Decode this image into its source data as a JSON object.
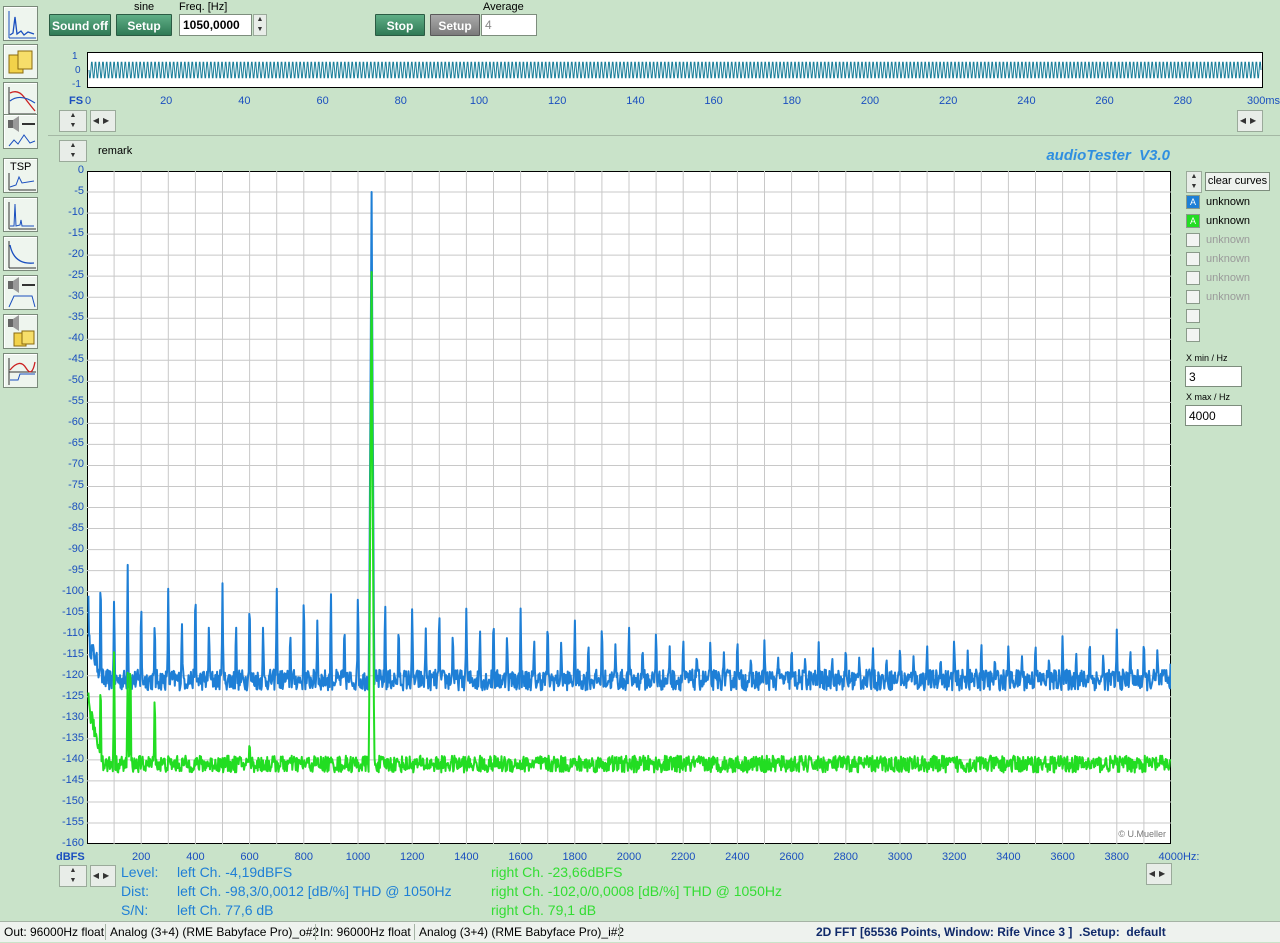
{
  "left_toolbar": [
    {
      "icon": "fft-spectrum-icon"
    },
    {
      "icon": "speaker-folder-icon"
    },
    {
      "icon": "frequency-response-icon"
    },
    {
      "icon": "speaker-measure-icon"
    },
    {
      "icon": "tsp-icon",
      "label": "TSP"
    },
    {
      "icon": "impulse-response-icon"
    },
    {
      "icon": "decay-curve-icon"
    },
    {
      "icon": "speaker-filter-icon"
    },
    {
      "icon": "speaker-folder-icon"
    },
    {
      "icon": "bode-plot-icon"
    }
  ],
  "generator": {
    "signal_type": "sine",
    "sound_button": "Sound off",
    "setup_button": "Setup",
    "freq_label": "Freq. [Hz]",
    "freq_value": "1050,0000"
  },
  "analyzer": {
    "stop_button": "Stop",
    "setup_button": "Setup",
    "average_label": "Average",
    "average_value": "4"
  },
  "scope": {
    "y_ticks": [
      "1",
      "0",
      "-1"
    ],
    "x_unit_left": "FS",
    "x_ticks": [
      "0",
      "20",
      "40",
      "60",
      "80",
      "100",
      "120",
      "140",
      "160",
      "180",
      "200",
      "220",
      "240",
      "260",
      "280",
      "300ms"
    ],
    "trace_color": "#1a7f9a"
  },
  "remark_label": "remark",
  "brand": "audioTester  V3.0",
  "copyright": "© U.Mueller",
  "clear_curves_button": "clear curves",
  "legend": [
    {
      "letter": "A",
      "label": "unknown",
      "color": "#1e7fd6",
      "active": true
    },
    {
      "letter": "A",
      "label": "unknown",
      "color": "#22dd22",
      "active": true
    },
    {
      "letter": "",
      "label": "unknown",
      "active": false
    },
    {
      "letter": "",
      "label": "unknown",
      "active": false
    },
    {
      "letter": "",
      "label": "unknown",
      "active": false
    },
    {
      "letter": "",
      "label": "unknown",
      "active": false
    },
    {
      "letter": "",
      "label": "",
      "active": false
    },
    {
      "letter": "",
      "label": "",
      "active": false
    }
  ],
  "xmin_label": "X min / Hz",
  "xmin_value": "3",
  "xmax_label": "X max / Hz",
  "xmax_value": "4000",
  "chart_data": {
    "type": "line",
    "ylabel": "dBFS",
    "xlabel": "Hz",
    "x_unit_suffix": "Hz:",
    "xlim": [
      0,
      4000
    ],
    "ylim": [
      -160,
      0
    ],
    "y_ticks": [
      "0",
      "-5",
      "-10",
      "-15",
      "-20",
      "-25",
      "-30",
      "-35",
      "-40",
      "-45",
      "-50",
      "-55",
      "-60",
      "-65",
      "-70",
      "-75",
      "-80",
      "-85",
      "-90",
      "-95",
      "-100",
      "-105",
      "-110",
      "-115",
      "-120",
      "-125",
      "-130",
      "-135",
      "-140",
      "-145",
      "-150",
      "-155",
      "-160"
    ],
    "x_ticks": [
      "200",
      "400",
      "600",
      "800",
      "1000",
      "1200",
      "1400",
      "1600",
      "1800",
      "2000",
      "2200",
      "2400",
      "2600",
      "2800",
      "3000",
      "3200",
      "3400",
      "3600",
      "3800",
      "4000"
    ],
    "grid": true,
    "series": [
      {
        "color": "#1e7fd6",
        "floor": -121,
        "peaks": [
          [
            5,
            -101
          ],
          [
            50,
            -92
          ],
          [
            100,
            -100
          ],
          [
            150,
            -92
          ],
          [
            200,
            -100
          ],
          [
            250,
            -105
          ],
          [
            300,
            -98
          ],
          [
            350,
            -106
          ],
          [
            400,
            -96
          ],
          [
            450,
            -106
          ],
          [
            500,
            -98
          ],
          [
            550,
            -106
          ],
          [
            600,
            -99
          ],
          [
            650,
            -107
          ],
          [
            700,
            -98
          ],
          [
            750,
            -108
          ],
          [
            800,
            -98
          ],
          [
            850,
            -106
          ],
          [
            900,
            -98
          ],
          [
            950,
            -106
          ],
          [
            1000,
            -98
          ],
          [
            1050,
            -5
          ],
          [
            1100,
            -100
          ],
          [
            1150,
            -106
          ],
          [
            1200,
            -102
          ],
          [
            1250,
            -108
          ],
          [
            1300,
            -102
          ],
          [
            1350,
            -108
          ],
          [
            1400,
            -103
          ],
          [
            1450,
            -108
          ],
          [
            1500,
            -104
          ],
          [
            1550,
            -109
          ],
          [
            1600,
            -104
          ],
          [
            1650,
            -110
          ],
          [
            1700,
            -105
          ],
          [
            1750,
            -111
          ],
          [
            1800,
            -106
          ],
          [
            1850,
            -111
          ],
          [
            1900,
            -106
          ],
          [
            1950,
            -112
          ],
          [
            2000,
            -107
          ],
          [
            2050,
            -112
          ],
          [
            2100,
            -108
          ],
          [
            2150,
            -113
          ],
          [
            2200,
            -110
          ],
          [
            2250,
            -114
          ],
          [
            2300,
            -111
          ],
          [
            2350,
            -114
          ],
          [
            2400,
            -110
          ],
          [
            2450,
            -115
          ],
          [
            2500,
            -111
          ],
          [
            2550,
            -115
          ],
          [
            2600,
            -112
          ],
          [
            2650,
            -115
          ],
          [
            2700,
            -112
          ],
          [
            2750,
            -115
          ],
          [
            2800,
            -112
          ],
          [
            2850,
            -115
          ],
          [
            2900,
            -113
          ],
          [
            2950,
            -115
          ],
          [
            3000,
            -112
          ],
          [
            3050,
            -115
          ],
          [
            3100,
            -112
          ],
          [
            3150,
            -115
          ],
          [
            3200,
            -110
          ],
          [
            3250,
            -114
          ],
          [
            3300,
            -111
          ],
          [
            3350,
            -115
          ],
          [
            3400,
            -112
          ],
          [
            3450,
            -115
          ],
          [
            3500,
            -111
          ],
          [
            3550,
            -115
          ],
          [
            3600,
            -110
          ],
          [
            3650,
            -114
          ],
          [
            3700,
            -110
          ],
          [
            3750,
            -114
          ],
          [
            3800,
            -109
          ],
          [
            3850,
            -113
          ],
          [
            3900,
            -110
          ],
          [
            3950,
            -113
          ],
          [
            4000,
            -112
          ]
        ]
      },
      {
        "color": "#22dd22",
        "floor": -141,
        "peaks": [
          [
            5,
            -124
          ],
          [
            50,
            -118
          ],
          [
            100,
            -111
          ],
          [
            150,
            -118
          ],
          [
            160,
            -111
          ],
          [
            250,
            -122
          ],
          [
            600,
            -135
          ],
          [
            1050,
            -24
          ]
        ]
      }
    ]
  },
  "readout": {
    "level_label": "Level:",
    "dist_label": "Dist:",
    "sn_label": "S/N:",
    "left_level": "left Ch. -4,19dBFS",
    "left_dist": "left Ch. -98,3/0,0012 [dB/%] THD @ 1050Hz",
    "left_sn": "left Ch. 77,6 dB",
    "right_level": "right Ch. -23,66dBFS",
    "right_dist": "right Ch. -102,0/0,0008 [dB/%] THD @ 1050Hz",
    "right_sn": "right Ch. 79,1 dB",
    "left_color": "#1e7fd6",
    "right_color": "#22dd22"
  },
  "status": {
    "out": "Out: 96000Hz float",
    "out_device": "Analog (3+4) (RME Babyface Pro)_o#2",
    "in": "In: 96000Hz float",
    "in_device": "Analog (3+4) (RME Babyface Pro)_i#2",
    "mode": "2D FFT [65536 Points, Window: Rife Vince 3 ]  .Setup:  default"
  }
}
